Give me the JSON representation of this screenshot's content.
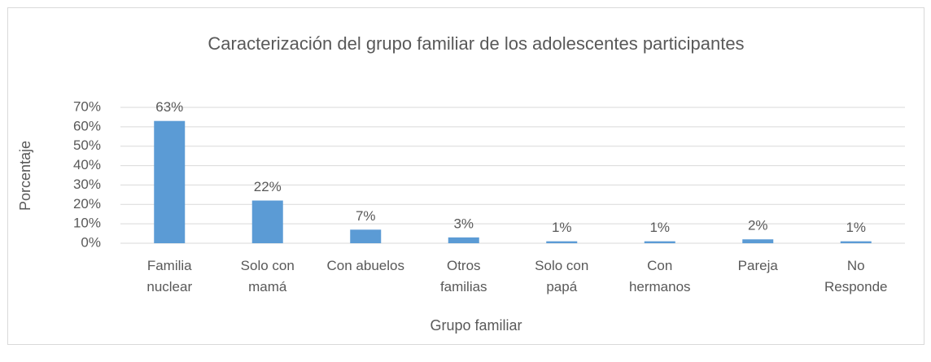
{
  "chart_data": {
    "type": "bar",
    "title": "Caracterización del grupo familiar de los adolescentes participantes",
    "x_label": "Grupo familiar",
    "y_label": "Porcentaje",
    "categories": [
      "Familia\nnuclear",
      "Solo con\nmamá",
      "Con abuelos",
      "Otros\nfamilias",
      "Solo con\npapá",
      "Con\nhermanos",
      "Pareja",
      "No\nResponde"
    ],
    "values": [
      63,
      22,
      7,
      3,
      1,
      1,
      2,
      1
    ],
    "value_labels": [
      "63%",
      "22%",
      "7%",
      "3%",
      "1%",
      "1%",
      "2%",
      "1%"
    ],
    "color": "#5b9bd5",
    "ylim": [
      0,
      70
    ],
    "yticks": [
      {
        "value": 0,
        "label": "0%"
      },
      {
        "value": 10,
        "label": "10%"
      },
      {
        "value": 20,
        "label": "20%"
      },
      {
        "value": 30,
        "label": "30%"
      },
      {
        "value": 40,
        "label": "40%"
      },
      {
        "value": 50,
        "label": "50%"
      },
      {
        "value": 60,
        "label": "60%"
      },
      {
        "value": 70,
        "label": "70%"
      }
    ],
    "grid": true
  }
}
